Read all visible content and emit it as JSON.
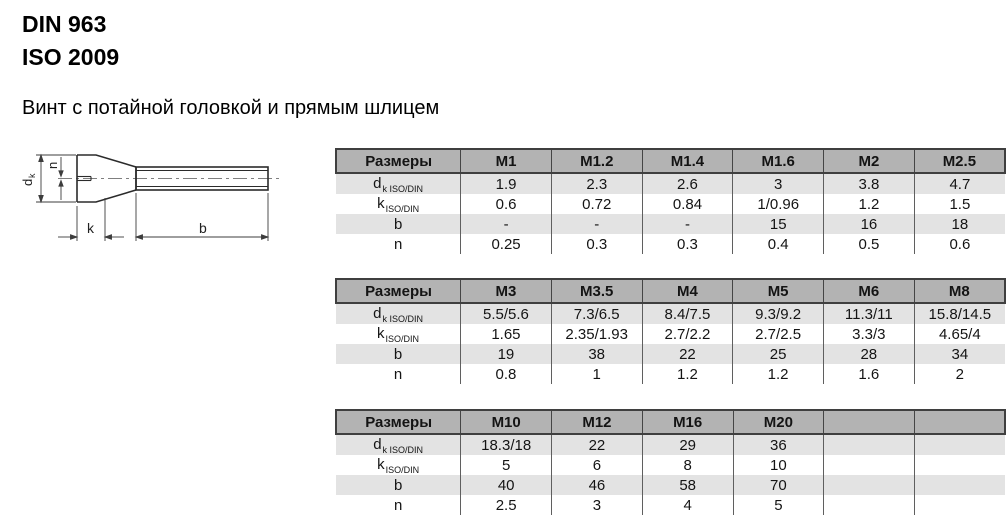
{
  "title": {
    "line1": "DIN 963",
    "line2": "ISO 2009"
  },
  "subtitle": "Винт с потайной головкой и прямым шлицем",
  "drawing": {
    "description": "countersunk-slotted-screw-side-view",
    "labels": {
      "dk_main": "d",
      "dk_sub": "k",
      "n": "n",
      "k": "k",
      "b": "b"
    }
  },
  "colors": {
    "table_header_bg": "#b3b3b3",
    "table_stripe_bg": "#e3e3e3",
    "table_border": "#3f3f3f"
  },
  "tables": [
    {
      "columns": [
        "Размеры",
        "M1",
        "M1.2",
        "M1.4",
        "M1.6",
        "M2",
        "M2.5"
      ],
      "rows": [
        {
          "label_main": "d",
          "label_sub": "k ISO/DIN",
          "values": [
            "1.9",
            "2.3",
            "2.6",
            "3",
            "3.8",
            "4.7"
          ]
        },
        {
          "label_main": "k",
          "label_sub": "ISO/DIN",
          "values": [
            "0.6",
            "0.72",
            "0.84",
            "1/0.96",
            "1.2",
            "1.5"
          ]
        },
        {
          "label_main": "b",
          "label_sub": "",
          "values": [
            "-",
            "-",
            "-",
            "15",
            "16",
            "18"
          ]
        },
        {
          "label_main": "n",
          "label_sub": "",
          "values": [
            "0.25",
            "0.3",
            "0.3",
            "0.4",
            "0.5",
            "0.6"
          ]
        }
      ]
    },
    {
      "columns": [
        "Размеры",
        "M3",
        "M3.5",
        "M4",
        "M5",
        "M6",
        "M8"
      ],
      "rows": [
        {
          "label_main": "d",
          "label_sub": "k ISO/DIN",
          "values": [
            "5.5/5.6",
            "7.3/6.5",
            "8.4/7.5",
            "9.3/9.2",
            "11.3/11",
            "15.8/14.5"
          ]
        },
        {
          "label_main": "k",
          "label_sub": "ISO/DIN",
          "values": [
            "1.65",
            "2.35/1.93",
            "2.7/2.2",
            "2.7/2.5",
            "3.3/3",
            "4.65/4"
          ]
        },
        {
          "label_main": "b",
          "label_sub": "",
          "values": [
            "19",
            "38",
            "22",
            "25",
            "28",
            "34"
          ]
        },
        {
          "label_main": "n",
          "label_sub": "",
          "values": [
            "0.8",
            "1",
            "1.2",
            "1.2",
            "1.6",
            "2"
          ]
        }
      ]
    },
    {
      "columns": [
        "Размеры",
        "M10",
        "M12",
        "M16",
        "M20",
        "",
        ""
      ],
      "rows": [
        {
          "label_main": "d",
          "label_sub": "k ISO/DIN",
          "values": [
            "18.3/18",
            "22",
            "29",
            "36",
            "",
            ""
          ]
        },
        {
          "label_main": "k",
          "label_sub": "ISO/DIN",
          "values": [
            "5",
            "6",
            "8",
            "10",
            "",
            ""
          ]
        },
        {
          "label_main": "b",
          "label_sub": "",
          "values": [
            "40",
            "46",
            "58",
            "70",
            "",
            ""
          ]
        },
        {
          "label_main": "n",
          "label_sub": "",
          "values": [
            "2.5",
            "3",
            "4",
            "5",
            "",
            ""
          ]
        }
      ]
    }
  ]
}
